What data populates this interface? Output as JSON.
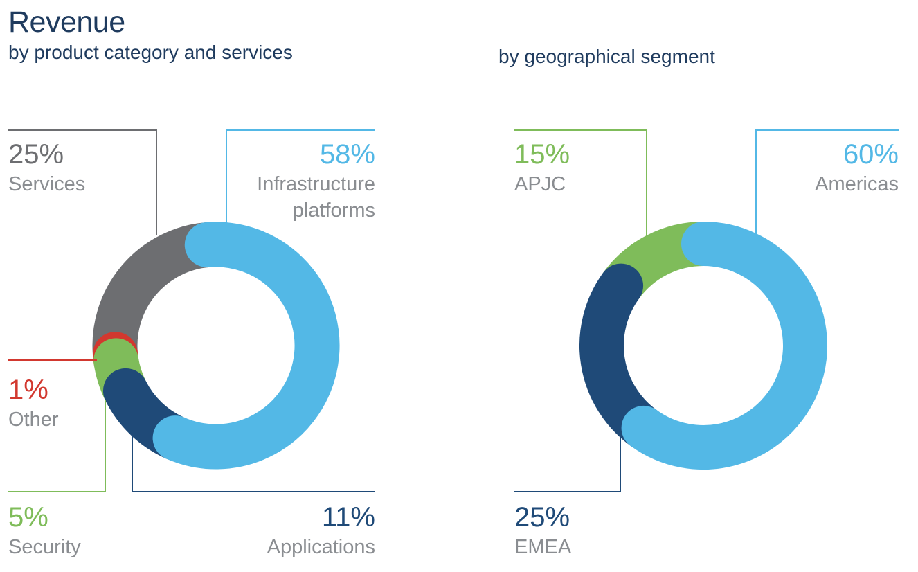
{
  "header": {
    "title": "Revenue",
    "subtitle_product": "by product category and services",
    "subtitle_geo": "by geographical segment"
  },
  "colors": {
    "light_blue": "#53b8e6",
    "gray": "#6d6e71",
    "red": "#d2382f",
    "green": "#7fbc5a",
    "dark_blue": "#1f4a78",
    "label_gray": "#8a8d91",
    "title_navy": "#1f3b5e"
  },
  "chart_data": [
    {
      "type": "pie",
      "title": "by product category and services",
      "unit": "%",
      "donut": true,
      "slices": [
        {
          "label": "Infrastructure platforms",
          "pct_text": "58%",
          "value": 58,
          "color": "#53b8e6"
        },
        {
          "label": "Applications",
          "pct_text": "11%",
          "value": 11,
          "color": "#1f4a78"
        },
        {
          "label": "Security",
          "pct_text": "5%",
          "value": 5,
          "color": "#7fbc5a"
        },
        {
          "label": "Other",
          "pct_text": "1%",
          "value": 1,
          "color": "#d2382f"
        },
        {
          "label": "Services",
          "pct_text": "25%",
          "value": 25,
          "color": "#6d6e71"
        }
      ]
    },
    {
      "type": "pie",
      "title": "by geographical segment",
      "unit": "%",
      "donut": true,
      "slices": [
        {
          "label": "Americas",
          "pct_text": "60%",
          "value": 60,
          "color": "#53b8e6"
        },
        {
          "label": "EMEA",
          "pct_text": "25%",
          "value": 25,
          "color": "#1f4a78"
        },
        {
          "label": "APJC",
          "pct_text": "15%",
          "value": 15,
          "color": "#7fbc5a"
        }
      ]
    }
  ]
}
